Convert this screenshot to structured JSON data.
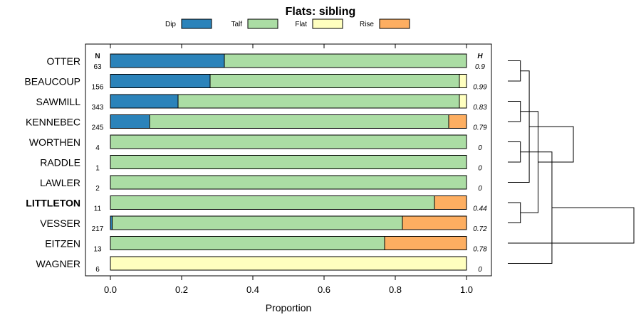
{
  "chart_data": {
    "type": "bar",
    "orientation": "horizontal",
    "stacked": true,
    "title": "Flats: sibling",
    "xlabel": "Proportion",
    "ylabel": "",
    "xlim": [
      0,
      1
    ],
    "xticks": [
      "0.0",
      "0.2",
      "0.4",
      "0.6",
      "0.8",
      "1.0"
    ],
    "legend_position": "top",
    "n_header": "N",
    "h_header": "H",
    "categories": [
      "OTTER",
      "BEAUCOUP",
      "SAWMILL",
      "KENNEBEC",
      "WORTHEN",
      "RADDLE",
      "LAWLER",
      "LITTLETON",
      "VESSER",
      "EITZEN",
      "WAGNER"
    ],
    "highlight": "LITTLETON",
    "n": [
      "63",
      "156",
      "343",
      "245",
      "4",
      "1",
      "2",
      "11",
      "217",
      "13",
      "6"
    ],
    "h": [
      "0.9",
      "0.99",
      "0.83",
      "0.79",
      "0",
      "0",
      "0",
      "0.44",
      "0.72",
      "0.78",
      "0"
    ],
    "series": [
      {
        "name": "Dip",
        "color": "#2b83ba",
        "values": [
          0.32,
          0.28,
          0.19,
          0.11,
          0,
          0,
          0,
          0,
          0.005,
          0,
          0
        ]
      },
      {
        "name": "Talf",
        "color": "#abdda4",
        "values": [
          0.68,
          0.7,
          0.79,
          0.84,
          1,
          1,
          1,
          0.91,
          0.815,
          0.77,
          0
        ]
      },
      {
        "name": "Flat",
        "color": "#ffffbf",
        "values": [
          0,
          0.02,
          0.02,
          0,
          0,
          0,
          0,
          0,
          0,
          0,
          1
        ]
      },
      {
        "name": "Rise",
        "color": "#fdae61",
        "values": [
          0,
          0,
          0,
          0.05,
          0,
          0,
          0,
          0.09,
          0.18,
          0.23,
          0
        ]
      }
    ],
    "dendrogram": {
      "type": "hierarchical-clustering",
      "merges": [
        [
          0,
          1,
          0.1
        ],
        [
          2,
          3,
          0.1
        ],
        [
          4,
          5,
          0.1
        ],
        [
          7,
          8,
          0.1
        ],
        [
          11,
          6,
          0.17
        ],
        [
          14,
          12,
          0.24
        ],
        [
          10,
          13,
          0.35
        ],
        [
          15,
          16,
          0.52
        ],
        [
          17,
          9,
          1.0
        ]
      ]
    }
  }
}
